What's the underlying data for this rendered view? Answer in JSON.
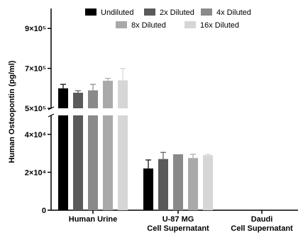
{
  "chart_data": {
    "type": "bar",
    "title": "",
    "ylabel": "Human Osteopontin (pg/ml)",
    "xlabel": "",
    "y_axis": "broken",
    "lower_segment": {
      "ylim": [
        0,
        50000
      ],
      "ticks": [
        {
          "value": 0,
          "label": "0"
        },
        {
          "value": 20000,
          "label": "2×10⁴"
        },
        {
          "value": 40000,
          "label": "4×10⁴"
        }
      ]
    },
    "upper_segment": {
      "ylim": [
        500000,
        1000000
      ],
      "ticks": [
        {
          "value": 500000,
          "label": "5×10⁵"
        },
        {
          "value": 700000,
          "label": "7×10⁵"
        },
        {
          "value": 900000,
          "label": "9×10⁵"
        }
      ]
    },
    "categories": [
      {
        "line1": "Human Urine",
        "line2": ""
      },
      {
        "line1": "U-87 MG",
        "line2": "Cell Supernatant"
      },
      {
        "line1": "Daudi",
        "line2": "Cell Supernatant"
      }
    ],
    "legend_position": "top",
    "series": [
      {
        "name": "Undiluted",
        "color": "#000000",
        "values": [
          600000,
          22000,
          0
        ],
        "errors": [
          20000,
          4500,
          0
        ]
      },
      {
        "name": "2x Diluted",
        "color": "#5a5a5a",
        "values": [
          578000,
          27000,
          0
        ],
        "errors": [
          10000,
          3500,
          0
        ]
      },
      {
        "name": "4x Diluted",
        "color": "#8a8a8a",
        "values": [
          590000,
          29500,
          0
        ],
        "errors": [
          30000,
          0,
          0
        ]
      },
      {
        "name": "8x Diluted",
        "color": "#a9a9a9",
        "values": [
          638000,
          27500,
          0
        ],
        "errors": [
          12000,
          2000,
          0
        ]
      },
      {
        "name": "16x Diluted",
        "color": "#d6d6d6",
        "values": [
          640000,
          29000,
          0
        ],
        "errors": [
          60000,
          500,
          0
        ]
      }
    ]
  }
}
